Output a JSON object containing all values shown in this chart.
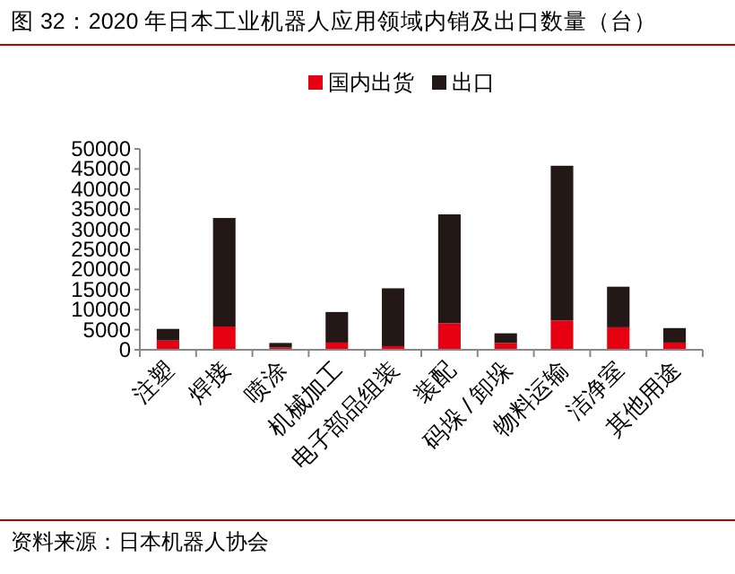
{
  "chart_data": {
    "type": "bar",
    "title": "图 32：2020 年日本工业机器人应用领域内销及出口数量（台）",
    "categories": [
      "注塑",
      "焊接",
      "喷涂",
      "机械加工",
      "电子部品组装",
      "装配",
      "码垛 / 卸垛",
      "物料运输",
      "洁净室",
      "其他用途"
    ],
    "series": [
      {
        "name": "国内出货",
        "color": "#e60012",
        "values": [
          2300,
          5800,
          600,
          1800,
          900,
          6600,
          1700,
          7300,
          5600,
          1800
        ]
      },
      {
        "name": "出口",
        "color": "#231815",
        "values": [
          2900,
          27000,
          1100,
          7600,
          14400,
          27100,
          2400,
          38500,
          10100,
          3600
        ]
      }
    ],
    "stacked": true,
    "ylim": [
      0,
      50000
    ],
    "yticks": [
      0,
      5000,
      10000,
      15000,
      20000,
      25000,
      30000,
      35000,
      40000,
      45000,
      50000
    ],
    "legend": "top",
    "annotations": [
      "资料来源：日本机器人协会"
    ]
  }
}
